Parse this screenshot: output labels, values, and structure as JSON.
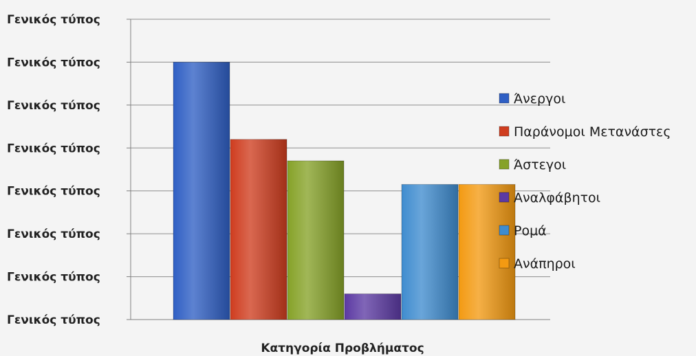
{
  "chart_data": {
    "type": "bar",
    "categories": [
      "Άνεργοι",
      "Παράνομοι Μετανάστες",
      "Άστεγοι",
      "Αναλφάβητοι",
      "Ρομά",
      "Ανάπηροι"
    ],
    "values": [
      6.0,
      4.2,
      3.7,
      0.6,
      3.15,
      3.15
    ],
    "colors": [
      "#2f5fc4",
      "#cf3d1f",
      "#86a228",
      "#5c3aa3",
      "#3f8ccf",
      "#f39a12"
    ],
    "ylim": [
      0,
      7
    ],
    "yticks": [
      0,
      1,
      2,
      3,
      4,
      5,
      6,
      7
    ],
    "ytick_labels": [
      "Γενικός τύπος",
      "Γενικός τύπος",
      "Γενικός τύπος",
      "Γενικός τύπος",
      "Γενικός τύπος",
      "Γενικός τύπος",
      "Γενικός τύπος",
      "Γενικός τύπος"
    ],
    "xlabel": "Κατηγορία Προβλήματος",
    "grid": true,
    "legend_position": "right"
  }
}
